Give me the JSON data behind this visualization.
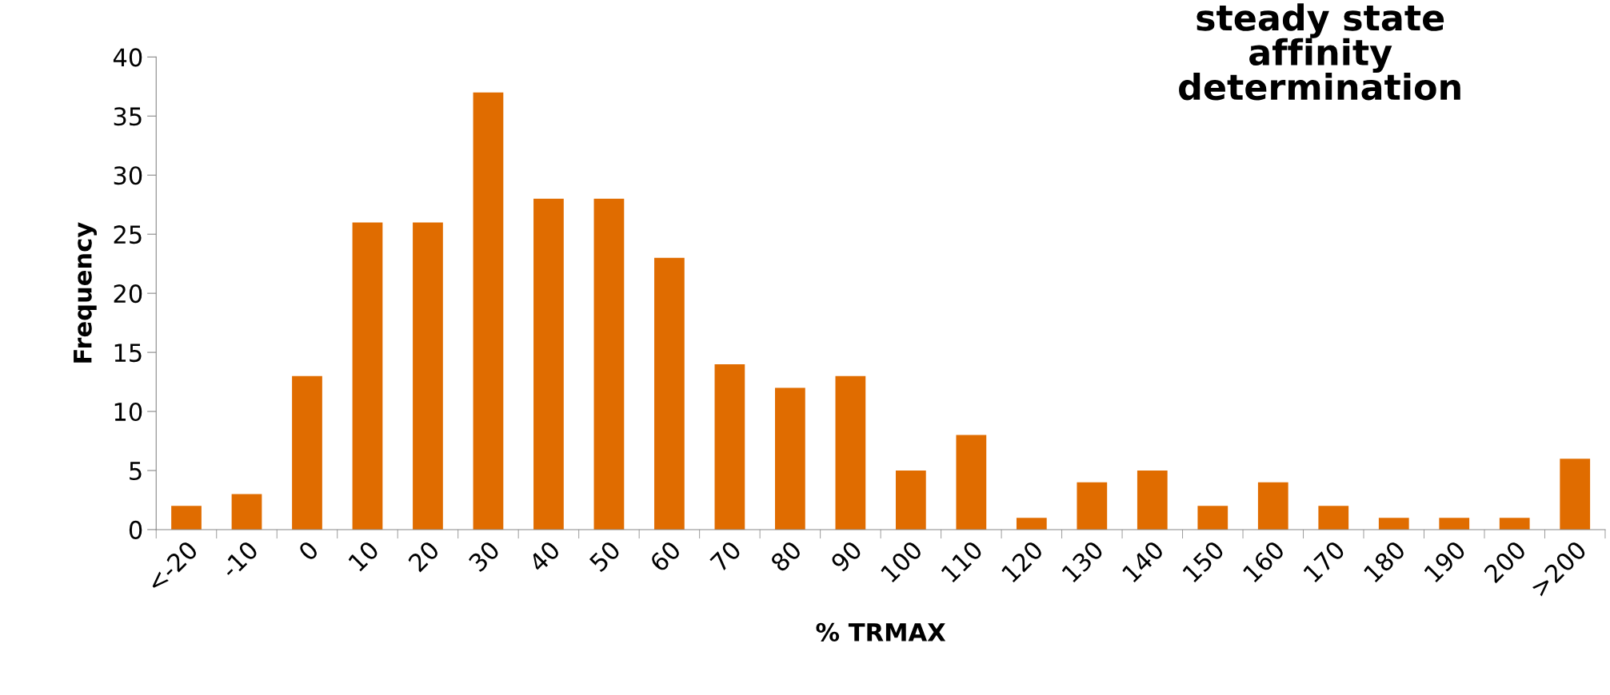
{
  "chart_data": {
    "type": "bar",
    "title": "steady state\naffinity\ndetermination",
    "xlabel": "% TRMAX",
    "ylabel": "Frequency",
    "categories": [
      "<-20",
      "-10",
      "0",
      "10",
      "20",
      "30",
      "40",
      "50",
      "60",
      "70",
      "80",
      "90",
      "100",
      "110",
      "120",
      "130",
      "140",
      "150",
      "160",
      "170",
      "180",
      "190",
      "200",
      ">200"
    ],
    "values": [
      2,
      3,
      13,
      26,
      26,
      37,
      28,
      28,
      23,
      14,
      12,
      13,
      5,
      8,
      1,
      4,
      5,
      2,
      4,
      2,
      1,
      1,
      1,
      6
    ],
    "color": "#e06c00",
    "ylim": [
      0,
      40
    ],
    "yticks": [
      0,
      5,
      10,
      15,
      20,
      25,
      30,
      35,
      40
    ],
    "grid": false,
    "legend": false
  }
}
